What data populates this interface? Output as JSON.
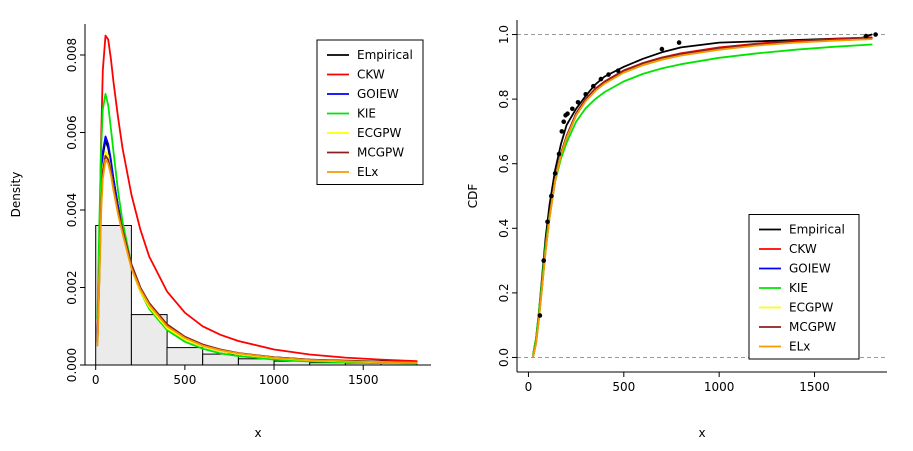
{
  "figure": {
    "background": "#ffffff"
  },
  "chart_data": [
    {
      "id": "density",
      "type": "line",
      "title": "",
      "xlabel": "x",
      "ylabel": "Density",
      "xlim": [
        -60,
        1880
      ],
      "ylim": [
        0,
        0.0088
      ],
      "xticks": [
        0,
        500,
        1000,
        1500
      ],
      "xtick_labels": [
        "0",
        "500",
        "1000",
        "1500"
      ],
      "yticks": [
        0,
        0.002,
        0.004,
        0.006,
        0.008
      ],
      "ytick_labels": [
        "0.000",
        "0.002",
        "0.004",
        "0.006",
        "0.008"
      ],
      "grid": false,
      "layout": {
        "margins": {
          "l": 85,
          "r": 26,
          "t": 24,
          "b": 86
        }
      },
      "histogram": {
        "start": 0,
        "bin_width": 200,
        "bar_fill": "#ebebeb",
        "densities": [
          0.0036,
          0.0013,
          0.00045,
          0.00028,
          0.00016,
          0.0001,
          6e-05,
          5e-05,
          0.0001
        ]
      },
      "series": [
        {
          "name": "Empirical",
          "color": "#000000",
          "x": [
            10,
            20,
            30,
            40,
            55,
            70,
            85,
            100,
            125,
            150,
            200,
            250,
            300,
            400,
            500,
            600,
            700,
            800,
            1000,
            1200,
            1400,
            1600,
            1800
          ],
          "y": [
            0.0006,
            0.0024,
            0.0044,
            0.0054,
            0.0058,
            0.0056,
            0.0052,
            0.0048,
            0.0041,
            0.0035,
            0.0026,
            0.002,
            0.00155,
            0.001,
            0.0007,
            0.0005,
            0.00038,
            0.0003,
            0.0002,
            0.00014,
            0.00011,
            9e-05,
            7e-05
          ]
        },
        {
          "name": "CKW",
          "color": "#FF0000",
          "x": [
            10,
            20,
            30,
            40,
            55,
            70,
            85,
            100,
            125,
            150,
            200,
            250,
            300,
            400,
            500,
            600,
            700,
            800,
            1000,
            1200,
            1400,
            1600,
            1800
          ],
          "y": [
            0.0008,
            0.003,
            0.0058,
            0.0076,
            0.0085,
            0.0084,
            0.0079,
            0.0073,
            0.0064,
            0.0056,
            0.0044,
            0.0035,
            0.0028,
            0.0019,
            0.00135,
            0.001,
            0.00078,
            0.00062,
            0.0004,
            0.00027,
            0.00019,
            0.00014,
            0.0001
          ]
        },
        {
          "name": "GOIEW",
          "color": "#0000FF",
          "x": [
            10,
            20,
            30,
            40,
            55,
            70,
            85,
            100,
            125,
            150,
            200,
            250,
            300,
            400,
            500,
            600,
            700,
            800,
            1000,
            1200,
            1400,
            1600,
            1800
          ],
          "y": [
            0.0007,
            0.0026,
            0.0046,
            0.0055,
            0.0059,
            0.0057,
            0.0053,
            0.0048,
            0.0041,
            0.0035,
            0.0025,
            0.0019,
            0.0015,
            0.00095,
            0.00066,
            0.00048,
            0.00036,
            0.00028,
            0.00018,
            0.00013,
            0.0001,
            8e-05,
            6e-05
          ]
        },
        {
          "name": "KIE",
          "color": "#00E500",
          "x": [
            10,
            20,
            30,
            40,
            55,
            70,
            85,
            100,
            125,
            150,
            200,
            250,
            300,
            400,
            500,
            600,
            700,
            800,
            1000,
            1200,
            1400,
            1600,
            1800
          ],
          "y": [
            0.0012,
            0.0036,
            0.0056,
            0.0066,
            0.007,
            0.0067,
            0.0061,
            0.0055,
            0.0045,
            0.0037,
            0.0026,
            0.0019,
            0.00145,
            0.0009,
            0.0006,
            0.00042,
            0.0003,
            0.00023,
            0.00014,
            9e-05,
            7e-05,
            5e-05,
            4e-05
          ]
        },
        {
          "name": "ECGPW",
          "color": "#FFFF00",
          "x": [
            10,
            20,
            30,
            40,
            55,
            70,
            85,
            100,
            125,
            150,
            200,
            250,
            300,
            400,
            500,
            600,
            700,
            800,
            1000,
            1200,
            1400,
            1600,
            1800
          ],
          "y": [
            0.0006,
            0.0023,
            0.0042,
            0.0051,
            0.0055,
            0.0054,
            0.005,
            0.0046,
            0.0039,
            0.0034,
            0.0025,
            0.0019,
            0.0015,
            0.00095,
            0.00066,
            0.00048,
            0.00036,
            0.00028,
            0.00018,
            0.00012,
            9e-05,
            7e-05,
            6e-05
          ]
        },
        {
          "name": "MCGPW",
          "color": "#8B2020",
          "x": [
            10,
            20,
            30,
            40,
            55,
            70,
            85,
            100,
            125,
            150,
            200,
            250,
            300,
            400,
            500,
            600,
            700,
            800,
            1000,
            1200,
            1400,
            1600,
            1800
          ],
          "y": [
            0.0006,
            0.0022,
            0.0041,
            0.005,
            0.0054,
            0.0053,
            0.005,
            0.0046,
            0.004,
            0.0035,
            0.0026,
            0.002,
            0.0016,
            0.00105,
            0.00073,
            0.00053,
            0.0004,
            0.00031,
            0.0002,
            0.00014,
            0.0001,
            8e-05,
            7e-05
          ]
        },
        {
          "name": "ELx",
          "color": "#F59B00",
          "x": [
            10,
            20,
            30,
            40,
            55,
            70,
            85,
            100,
            125,
            150,
            200,
            250,
            300,
            400,
            500,
            600,
            700,
            800,
            1000,
            1200,
            1400,
            1600,
            1800
          ],
          "y": [
            0.0005,
            0.0021,
            0.0039,
            0.0048,
            0.0053,
            0.0052,
            0.0049,
            0.0045,
            0.0039,
            0.0034,
            0.0025,
            0.00195,
            0.00155,
            0.001,
            0.0007,
            0.0005,
            0.00038,
            0.0003,
            0.00019,
            0.00013,
            0.0001,
            8e-05,
            6e-05
          ]
        }
      ],
      "legend": {
        "position": "topright",
        "width": 106,
        "entries": [
          {
            "label": "Empirical",
            "color": "#000000"
          },
          {
            "label": "CKW",
            "color": "#FF0000"
          },
          {
            "label": "GOIEW",
            "color": "#0000FF"
          },
          {
            "label": "KIE",
            "color": "#00E500"
          },
          {
            "label": "ECGPW",
            "color": "#FFFF00"
          },
          {
            "label": "MCGPW",
            "color": "#8B2020"
          },
          {
            "label": "ELx",
            "color": "#F59B00"
          }
        ]
      }
    },
    {
      "id": "cdf",
      "type": "line",
      "title": "",
      "xlabel": "x",
      "ylabel": "CDF",
      "xlim": [
        -60,
        1880
      ],
      "ylim": [
        -0.045,
        1.045
      ],
      "xticks": [
        0,
        500,
        1000,
        1500
      ],
      "xtick_labels": [
        "0",
        "500",
        "1000",
        "1500"
      ],
      "yticks": [
        0,
        0.2,
        0.4,
        0.6,
        0.8,
        1.0
      ],
      "ytick_labels": [
        "0.0",
        "0.2",
        "0.4",
        "0.6",
        "0.8",
        "1.0"
      ],
      "grid": false,
      "ref_hlines": [
        0,
        1
      ],
      "layout": {
        "margins": {
          "l": 60,
          "r": 26,
          "t": 20,
          "b": 79
        }
      },
      "series": [
        {
          "name": "Empirical",
          "color": "#000000",
          "x": [
            25,
            40,
            55,
            70,
            90,
            110,
            140,
            170,
            200,
            250,
            300,
            350,
            400,
            500,
            600,
            700,
            800,
            1000,
            1750,
            1800
          ],
          "y": [
            0.01,
            0.06,
            0.14,
            0.24,
            0.37,
            0.47,
            0.58,
            0.66,
            0.72,
            0.77,
            0.81,
            0.845,
            0.87,
            0.9,
            0.925,
            0.945,
            0.96,
            0.975,
            0.99,
            1.0
          ]
        },
        {
          "name": "CKW",
          "color": "#FF0000",
          "x": [
            25,
            40,
            55,
            70,
            90,
            110,
            140,
            170,
            200,
            250,
            300,
            350,
            400,
            500,
            600,
            700,
            800,
            1000,
            1200,
            1400,
            1600,
            1800
          ],
          "y": [
            0.005,
            0.05,
            0.13,
            0.22,
            0.34,
            0.44,
            0.55,
            0.63,
            0.685,
            0.755,
            0.8,
            0.832,
            0.855,
            0.889,
            0.912,
            0.929,
            0.942,
            0.96,
            0.972,
            0.98,
            0.986,
            0.991
          ]
        },
        {
          "name": "GOIEW",
          "color": "#0000FF",
          "x": [
            25,
            40,
            55,
            70,
            90,
            110,
            140,
            170,
            200,
            250,
            300,
            350,
            400,
            500,
            600,
            700,
            800,
            1000,
            1200,
            1400,
            1600,
            1800
          ],
          "y": [
            0.004,
            0.045,
            0.12,
            0.21,
            0.33,
            0.43,
            0.545,
            0.625,
            0.68,
            0.75,
            0.795,
            0.826,
            0.85,
            0.884,
            0.907,
            0.924,
            0.937,
            0.956,
            0.968,
            0.976,
            0.982,
            0.987
          ]
        },
        {
          "name": "KIE",
          "color": "#00E500",
          "x": [
            25,
            40,
            55,
            70,
            90,
            110,
            140,
            170,
            200,
            250,
            300,
            350,
            400,
            500,
            600,
            700,
            800,
            1000,
            1200,
            1400,
            1600,
            1800
          ],
          "y": [
            0.01,
            0.06,
            0.14,
            0.23,
            0.35,
            0.44,
            0.545,
            0.615,
            0.665,
            0.73,
            0.772,
            0.8,
            0.822,
            0.855,
            0.878,
            0.895,
            0.908,
            0.928,
            0.942,
            0.953,
            0.962,
            0.969
          ]
        },
        {
          "name": "ECGPW",
          "color": "#FFFF00",
          "x": [
            25,
            40,
            55,
            70,
            90,
            110,
            140,
            170,
            200,
            250,
            300,
            350,
            400,
            500,
            600,
            700,
            800,
            1000,
            1200,
            1400,
            1600,
            1800
          ],
          "y": [
            0.004,
            0.045,
            0.12,
            0.21,
            0.33,
            0.43,
            0.55,
            0.63,
            0.683,
            0.752,
            0.797,
            0.828,
            0.851,
            0.885,
            0.908,
            0.925,
            0.938,
            0.956,
            0.968,
            0.977,
            0.983,
            0.988
          ]
        },
        {
          "name": "MCGPW",
          "color": "#8B2020",
          "x": [
            25,
            40,
            55,
            70,
            90,
            110,
            140,
            170,
            200,
            250,
            300,
            350,
            400,
            500,
            600,
            700,
            800,
            1000,
            1200,
            1400,
            1600,
            1800
          ],
          "y": [
            0.004,
            0.047,
            0.123,
            0.213,
            0.333,
            0.433,
            0.552,
            0.632,
            0.686,
            0.756,
            0.8,
            0.831,
            0.854,
            0.888,
            0.911,
            0.928,
            0.94,
            0.958,
            0.97,
            0.978,
            0.984,
            0.989
          ]
        },
        {
          "name": "ELx",
          "color": "#F59B00",
          "x": [
            25,
            40,
            55,
            70,
            90,
            110,
            140,
            170,
            200,
            250,
            300,
            350,
            400,
            500,
            600,
            700,
            800,
            1000,
            1200,
            1400,
            1600,
            1800
          ],
          "y": [
            0.004,
            0.044,
            0.118,
            0.208,
            0.328,
            0.428,
            0.547,
            0.627,
            0.68,
            0.75,
            0.794,
            0.825,
            0.848,
            0.882,
            0.905,
            0.922,
            0.935,
            0.953,
            0.966,
            0.975,
            0.981,
            0.986
          ]
        }
      ],
      "points": {
        "name": "Empirical",
        "color": "#000000",
        "x": [
          60,
          80,
          100,
          120,
          140,
          160,
          175,
          185,
          195,
          205,
          230,
          260,
          300,
          340,
          380,
          420,
          470,
          700,
          790,
          1770,
          1820
        ],
        "y": [
          0.13,
          0.3,
          0.42,
          0.5,
          0.57,
          0.63,
          0.7,
          0.73,
          0.75,
          0.755,
          0.77,
          0.79,
          0.815,
          0.84,
          0.862,
          0.876,
          0.888,
          0.955,
          0.975,
          0.995,
          1.0
        ]
      },
      "legend": {
        "position": "bottomright",
        "width": 110,
        "entries": [
          {
            "label": "Empirical",
            "color": "#000000"
          },
          {
            "label": "CKW",
            "color": "#FF0000"
          },
          {
            "label": "GOIEW",
            "color": "#0000FF"
          },
          {
            "label": "KIE",
            "color": "#00E500"
          },
          {
            "label": "ECGPW",
            "color": "#FFFF00"
          },
          {
            "label": "MCGPW",
            "color": "#8B2020"
          },
          {
            "label": "ELx",
            "color": "#F59B00"
          }
        ]
      }
    }
  ]
}
